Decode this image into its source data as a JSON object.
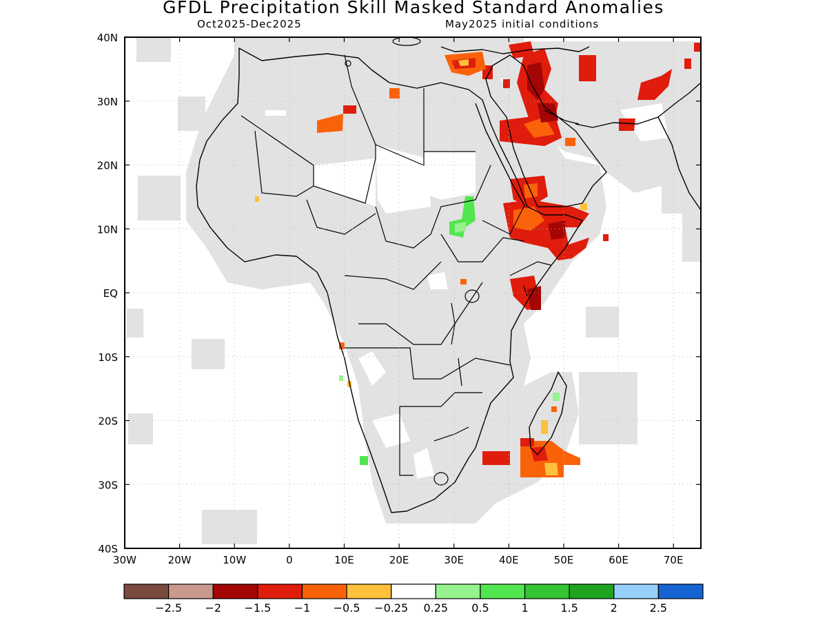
{
  "title": "GFDL Precipitation Skill Masked Standard Anomalies",
  "subtitle_left": "Oct2025-Dec2025",
  "subtitle_right": "May2025 initial conditions",
  "map": {
    "lon_range": [
      -30,
      75
    ],
    "lat_range": [
      -40,
      40
    ],
    "x_ticks": [
      {
        "lon": -30,
        "label": "30W"
      },
      {
        "lon": -20,
        "label": "20W"
      },
      {
        "lon": -10,
        "label": "10W"
      },
      {
        "lon": 0,
        "label": "0"
      },
      {
        "lon": 10,
        "label": "10E"
      },
      {
        "lon": 20,
        "label": "20E"
      },
      {
        "lon": 30,
        "label": "30E"
      },
      {
        "lon": 40,
        "label": "40E"
      },
      {
        "lon": 50,
        "label": "50E"
      },
      {
        "lon": 60,
        "label": "60E"
      },
      {
        "lon": 70,
        "label": "70E"
      }
    ],
    "y_ticks": [
      {
        "lat": 40,
        "label": "40N"
      },
      {
        "lat": 30,
        "label": "30N"
      },
      {
        "lat": 20,
        "label": "20N"
      },
      {
        "lat": 10,
        "label": "10N"
      },
      {
        "lat": 0,
        "label": "EQ"
      },
      {
        "lat": -10,
        "label": "10S"
      },
      {
        "lat": -20,
        "label": "20S"
      },
      {
        "lat": -30,
        "label": "30S"
      },
      {
        "lat": -40,
        "label": "40S"
      }
    ],
    "skill_mask_color": "#e2e2e2",
    "coastline_color": "#000000",
    "grid_style": "dotted"
  },
  "colorbar": {
    "colors": [
      "#7a4a3e",
      "#c89a8e",
      "#a40606",
      "#e01c0c",
      "#fa620a",
      "#ffc03c",
      "#ffffff",
      "#96f28c",
      "#52e64e",
      "#34c434",
      "#1ea41e",
      "#96d0fa",
      "#1464d2"
    ],
    "labels": [
      "-2.5",
      "-2",
      "-1.5",
      "-1",
      "-0.5",
      "-0.25",
      "0.25",
      "0.5",
      "1",
      "1.5",
      "2",
      "2.5"
    ]
  }
}
